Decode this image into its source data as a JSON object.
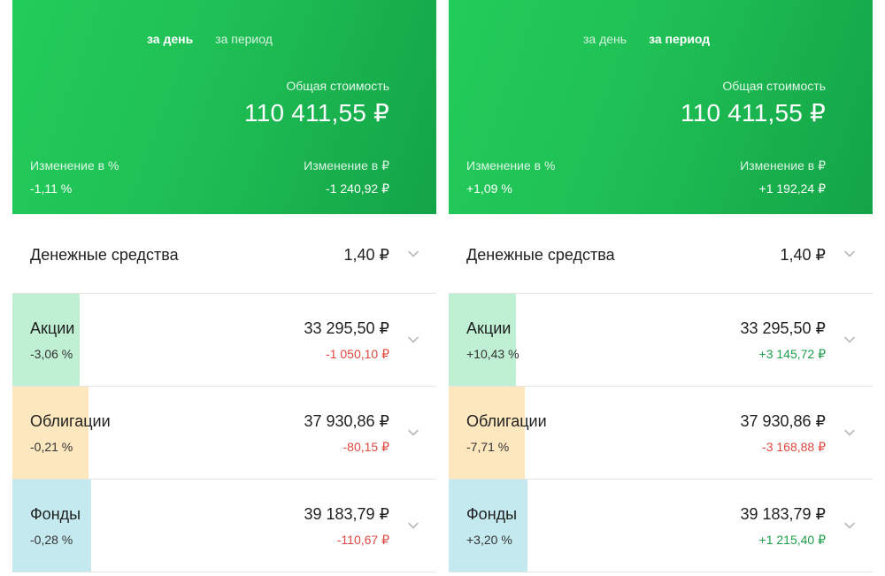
{
  "colors": {
    "header_gradient_start": "#22cc5a",
    "header_gradient_end": "#13a447",
    "negative": "#e0483e",
    "positive": "#1e9e4a",
    "stocks_bar": "#bff0d4",
    "bonds_bar": "#fde7bf",
    "funds_bar": "#c4eaf0"
  },
  "panels": [
    {
      "tabs": [
        {
          "label": "за день",
          "active": true
        },
        {
          "label": "за период",
          "active": false
        }
      ],
      "total_label": "Общая стоимость",
      "total_value": "110 411,55 ₽",
      "change_pct_label": "Изменение в  %",
      "change_pct_value": "-1,11  %",
      "change_rub_label": "Изменение в ₽",
      "change_rub_value": "-1 240,92 ₽",
      "cash": {
        "label": "Денежные средства",
        "value": "1,40 ₽",
        "icon": "chevron-down-icon"
      },
      "assets": [
        {
          "name": "Акции",
          "pct": "-3,06  %",
          "value": "33 295,50 ₽",
          "delta": "-1 050,10 ₽",
          "trend": "negative",
          "share": 0.158,
          "bar_color": "#bff0d4"
        },
        {
          "name": "Облигации",
          "pct": "-0,21  %",
          "value": "37 930,86 ₽",
          "delta": "-80,15 ₽",
          "trend": "negative",
          "share": 0.179,
          "bar_color": "#fde7bf"
        },
        {
          "name": "Фонды",
          "pct": "-0,28  %",
          "value": "39 183,79 ₽",
          "delta": "-110,67 ₽",
          "trend": "negative",
          "share": 0.185,
          "bar_color": "#c4eaf0"
        }
      ]
    },
    {
      "tabs": [
        {
          "label": "за день",
          "active": false
        },
        {
          "label": "за период",
          "active": true
        }
      ],
      "total_label": "Общая стоимость",
      "total_value": "110 411,55 ₽",
      "change_pct_label": "Изменение в  %",
      "change_pct_value": "+1,09  %",
      "change_rub_label": "Изменение в ₽",
      "change_rub_value": "+1 192,24 ₽",
      "cash": {
        "label": "Денежные средства",
        "value": "1,40 ₽",
        "icon": "chevron-down-icon"
      },
      "assets": [
        {
          "name": "Акции",
          "pct": "+10,43  %",
          "value": "33 295,50 ₽",
          "delta": "+3 145,72 ₽",
          "trend": "positive",
          "share": 0.158,
          "bar_color": "#bff0d4"
        },
        {
          "name": "Облигации",
          "pct": "-7,71  %",
          "value": "37 930,86 ₽",
          "delta": "-3 168,88 ₽",
          "trend": "negative",
          "share": 0.179,
          "bar_color": "#fde7bf"
        },
        {
          "name": "Фонды",
          "pct": "+3,20  %",
          "value": "39 183,79 ₽",
          "delta": "+1 215,40 ₽",
          "trend": "positive",
          "share": 0.185,
          "bar_color": "#c4eaf0"
        }
      ]
    }
  ]
}
